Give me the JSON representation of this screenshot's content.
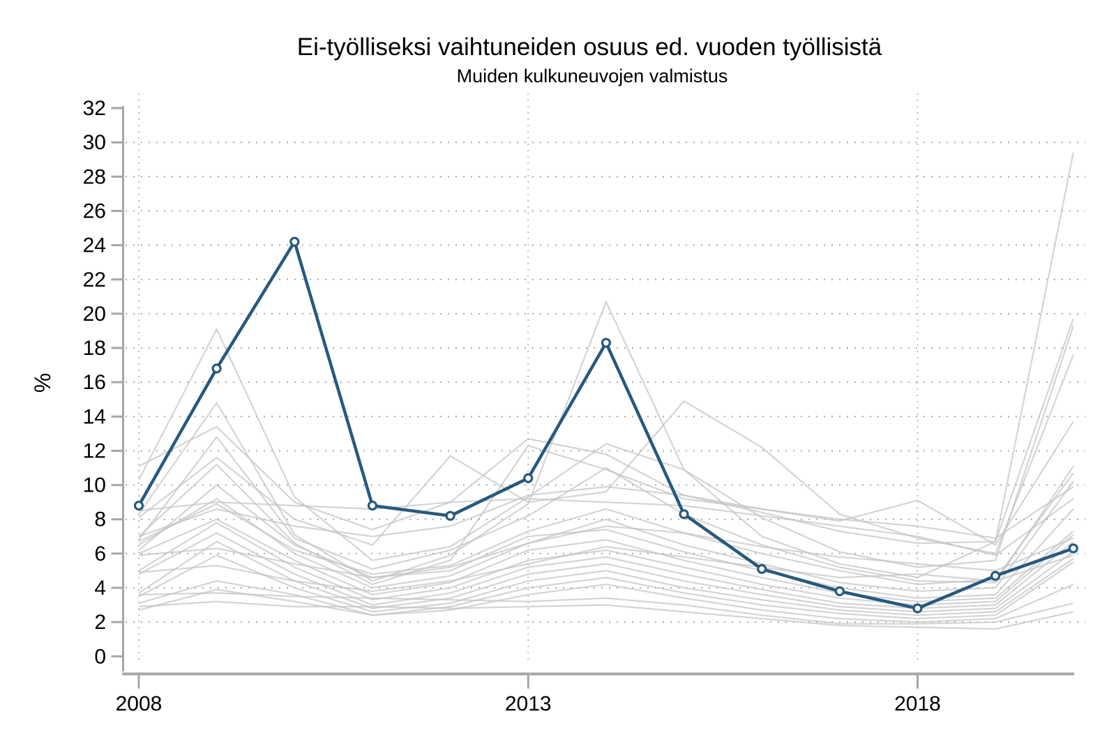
{
  "title": "Ei-työlliseksi vaihtuneiden osuus ed. vuoden työllisistä",
  "subtitle": "Muiden kulkuneuvojen valmistus",
  "colors": {
    "highlight_line": "#27597c",
    "marker_fill": "#ffffff",
    "background_line": "#c4c4c4",
    "axis": "#a6a6a6",
    "hgrid": "#a8a8a8",
    "vgrid": "#bcbcbc",
    "text": "#000000",
    "page_background": "#ffffff"
  },
  "chart_data": {
    "type": "line",
    "title": "Ei-työlliseksi vaihtuneiden osuus ed. vuoden työllisistä",
    "subtitle": "Muiden kulkuneuvojen valmistus",
    "xlabel": "",
    "ylabel": "%",
    "x": [
      2008,
      2009,
      2010,
      2011,
      2012,
      2013,
      2014,
      2015,
      2016,
      2017,
      2018,
      2019,
      2020
    ],
    "xlim": [
      2008,
      2020
    ],
    "ylim": [
      0,
      32
    ],
    "xticks": [
      2008,
      2013,
      2018
    ],
    "yticks": [
      0,
      2,
      4,
      6,
      8,
      10,
      12,
      14,
      16,
      18,
      20,
      22,
      24,
      26,
      28,
      30,
      32
    ],
    "grid": "dotted horizontal lines at even values 2-30, dotted vertical lines at labeled years",
    "legend": "none",
    "series": [
      {
        "name": "Muiden kulkuneuvojen valmistus",
        "role": "highlight",
        "markers": true,
        "values": [
          8.8,
          16.8,
          24.2,
          8.8,
          8.2,
          10.4,
          18.3,
          8.3,
          5.1,
          3.8,
          2.8,
          4.7,
          6.3
        ]
      },
      {
        "name": "background-1",
        "role": "background",
        "markers": false,
        "values": [
          11.1,
          13.4,
          9.0,
          7.4,
          9.0,
          12.7,
          11.8,
          9.4,
          8.4,
          7.3,
          6.6,
          6.7,
          19.7
        ]
      },
      {
        "name": "background-2",
        "role": "background",
        "markers": false,
        "values": [
          10.3,
          19.1,
          9.3,
          5.6,
          6.4,
          9.3,
          12.4,
          10.9,
          8.1,
          6.1,
          5.2,
          5.6,
          19.3
        ]
      },
      {
        "name": "background-3",
        "role": "background",
        "markers": false,
        "values": [
          8.3,
          14.8,
          7.1,
          4.4,
          5.9,
          8.9,
          20.7,
          10.9,
          7.0,
          5.4,
          4.6,
          6.7,
          29.4
        ]
      },
      {
        "name": "background-4",
        "role": "background",
        "markers": false,
        "values": [
          8.1,
          11.6,
          8.0,
          6.5,
          11.7,
          9.0,
          9.6,
          14.9,
          12.2,
          8.3,
          6.9,
          6.0,
          17.6
        ]
      },
      {
        "name": "background-5",
        "role": "background",
        "markers": false,
        "values": [
          7.0,
          11.2,
          6.6,
          4.2,
          5.6,
          12.3,
          10.9,
          9.2,
          8.6,
          7.9,
          9.1,
          6.5,
          13.7
        ]
      },
      {
        "name": "background-6",
        "role": "background",
        "markers": false,
        "values": [
          6.8,
          12.8,
          6.9,
          5.1,
          6.2,
          8.2,
          11.0,
          8.3,
          6.5,
          5.2,
          4.4,
          4.3,
          11.1
        ]
      },
      {
        "name": "background-7",
        "role": "background",
        "markers": false,
        "values": [
          6.7,
          8.9,
          6.2,
          4.8,
          5.3,
          7.3,
          8.6,
          7.2,
          6.0,
          5.0,
          4.2,
          4.5,
          10.7
        ]
      },
      {
        "name": "background-8",
        "role": "background",
        "markers": false,
        "values": [
          6.5,
          9.2,
          6.0,
          4.0,
          4.7,
          6.6,
          8.0,
          6.5,
          5.4,
          4.3,
          3.8,
          4.0,
          10.2
        ]
      },
      {
        "name": "background-9",
        "role": "background",
        "markers": false,
        "values": [
          6.2,
          10.0,
          6.5,
          4.6,
          5.0,
          7.0,
          7.4,
          6.1,
          5.0,
          4.0,
          3.4,
          3.6,
          8.6
        ]
      },
      {
        "name": "background-10",
        "role": "background",
        "markers": false,
        "values": [
          6.0,
          8.0,
          5.6,
          3.6,
          4.3,
          6.2,
          6.8,
          5.6,
          4.6,
          3.7,
          3.2,
          3.4,
          7.3
        ]
      },
      {
        "name": "background-11",
        "role": "background",
        "markers": false,
        "values": [
          5.9,
          6.3,
          5.4,
          4.6,
          5.2,
          6.6,
          7.6,
          7.2,
          6.4,
          5.8,
          5.4,
          5.0,
          6.9
        ]
      },
      {
        "name": "background-12",
        "role": "background",
        "markers": false,
        "values": [
          5.0,
          7.8,
          5.2,
          3.3,
          4.0,
          5.6,
          6.2,
          5.2,
          4.2,
          3.4,
          3.0,
          3.2,
          7.1
        ]
      },
      {
        "name": "background-13",
        "role": "background",
        "markers": false,
        "values": [
          4.8,
          7.2,
          4.8,
          3.0,
          3.7,
          5.2,
          5.8,
          4.8,
          3.9,
          3.1,
          2.8,
          3.0,
          6.7
        ]
      },
      {
        "name": "background-14",
        "role": "background",
        "markers": false,
        "values": [
          4.9,
          5.3,
          4.4,
          3.8,
          4.4,
          5.4,
          6.4,
          5.8,
          5.2,
          4.6,
          4.8,
          4.4,
          5.9
        ]
      },
      {
        "name": "background-15",
        "role": "background",
        "markers": false,
        "values": [
          3.7,
          6.7,
          4.4,
          2.8,
          3.4,
          4.8,
          5.4,
          4.4,
          3.6,
          2.9,
          2.6,
          2.8,
          6.1
        ]
      },
      {
        "name": "background-16",
        "role": "background",
        "markers": false,
        "values": [
          3.5,
          5.9,
          4.0,
          2.6,
          3.1,
          4.4,
          5.0,
          4.0,
          3.3,
          2.7,
          2.4,
          2.6,
          5.7
        ]
      },
      {
        "name": "background-17",
        "role": "background",
        "markers": false,
        "values": [
          3.1,
          4.4,
          3.6,
          2.4,
          2.9,
          4.0,
          4.6,
          3.7,
          3.0,
          2.5,
          2.2,
          2.4,
          5.5
        ]
      },
      {
        "name": "background-18",
        "role": "background",
        "markers": false,
        "values": [
          2.7,
          3.9,
          3.2,
          2.4,
          2.7,
          3.6,
          4.2,
          3.4,
          2.7,
          2.2,
          2.0,
          2.2,
          4.2
        ]
      },
      {
        "name": "background-19",
        "role": "background",
        "markers": false,
        "values": [
          3.6,
          3.7,
          3.5,
          3.4,
          3.3,
          3.2,
          3.4,
          3.0,
          2.4,
          1.9,
          1.9,
          2.0,
          3.1
        ]
      },
      {
        "name": "background-20",
        "role": "background",
        "markers": false,
        "values": [
          2.9,
          3.2,
          2.9,
          2.9,
          2.8,
          2.9,
          3.0,
          2.6,
          2.2,
          1.8,
          1.7,
          1.6,
          2.6
        ]
      },
      {
        "name": "background-21",
        "role": "background",
        "markers": false,
        "values": [
          8.5,
          9.0,
          8.8,
          8.6,
          9.0,
          9.2,
          9.0,
          8.8,
          8.2,
          7.6,
          7.0,
          5.9,
          9.2
        ]
      },
      {
        "name": "background-22",
        "role": "background",
        "markers": false,
        "values": [
          7.0,
          8.6,
          7.6,
          7.0,
          7.6,
          9.4,
          9.9,
          9.4,
          8.6,
          8.0,
          7.6,
          6.9,
          9.9
        ]
      }
    ]
  }
}
